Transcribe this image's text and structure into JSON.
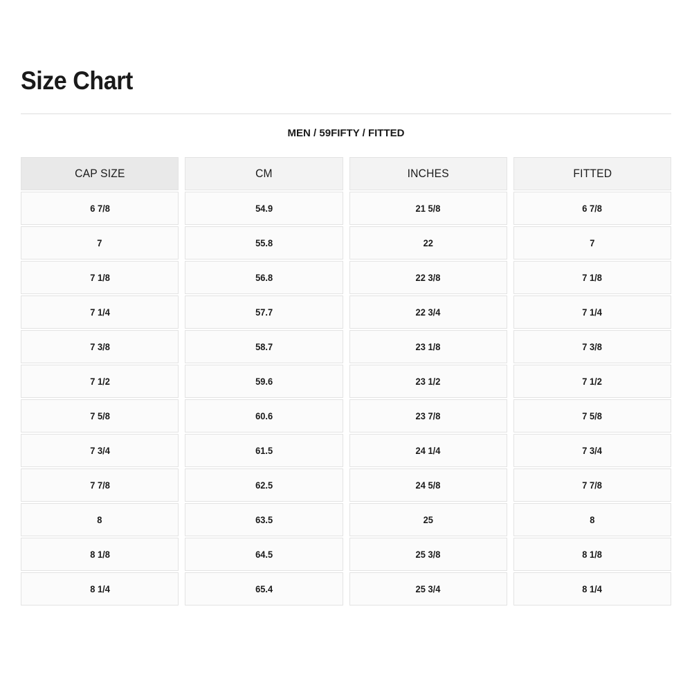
{
  "page": {
    "title": "Size Chart",
    "subtitle": "MEN / 59FIFTY / FITTED"
  },
  "colors": {
    "background": "#ffffff",
    "text": "#1a1a1a",
    "divider": "#dedede",
    "cell_border": "#e3e3e3",
    "header_first_bg": "#e9e9e9",
    "header_bg": "#f3f3f3",
    "data_cell_bg": "#fbfbfb"
  },
  "chart_data": {
    "type": "table",
    "title": "Size Chart",
    "subtitle": "MEN / 59FIFTY / FITTED",
    "columns": [
      "CAP SIZE",
      "CM",
      "INCHES",
      "FITTED"
    ],
    "rows": [
      [
        "6 7/8",
        "54.9",
        "21 5/8",
        "6 7/8"
      ],
      [
        "7",
        "55.8",
        "22",
        "7"
      ],
      [
        "7 1/8",
        "56.8",
        "22 3/8",
        "7 1/8"
      ],
      [
        "7 1/4",
        "57.7",
        "22 3/4",
        "7 1/4"
      ],
      [
        "7 3/8",
        "58.7",
        "23 1/8",
        "7 3/8"
      ],
      [
        "7 1/2",
        "59.6",
        "23 1/2",
        "7 1/2"
      ],
      [
        "7 5/8",
        "60.6",
        "23 7/8",
        "7 5/8"
      ],
      [
        "7 3/4",
        "61.5",
        "24 1/4",
        "7 3/4"
      ],
      [
        "7 7/8",
        "62.5",
        "24 5/8",
        "7 7/8"
      ],
      [
        "8",
        "63.5",
        "25",
        "8"
      ],
      [
        "8 1/8",
        "64.5",
        "25 3/8",
        "8 1/8"
      ],
      [
        "8 1/4",
        "65.4",
        "25 3/4",
        "8 1/4"
      ]
    ]
  }
}
